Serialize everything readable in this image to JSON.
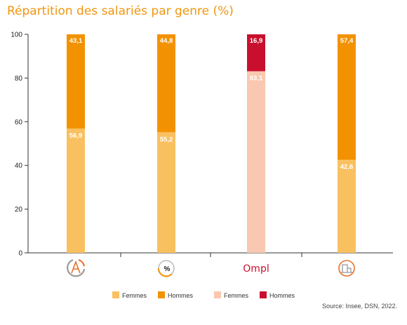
{
  "header": {
    "title": "Répartition des salariés par genre (%)"
  },
  "footer": {
    "source": "Source: Insee, DSN, 2022."
  },
  "colors": {
    "femmes": "#f9c060",
    "hommes": "#f39200",
    "femmes_ompl": "#f9c8b0",
    "hommes_ompl": "#c8102e",
    "axis": "#333333",
    "title": "#f0960f"
  },
  "chart_data": {
    "type": "bar",
    "stacked": true,
    "categories": [
      "architecture-icon",
      "percent-icon",
      "Ompl",
      "building-icon"
    ],
    "category_logo_text": [
      "",
      "",
      "Ompl",
      ""
    ],
    "series": [
      {
        "name": "Femmes",
        "values": [
          56.9,
          55.2,
          83.1,
          42.6
        ],
        "labels": [
          "56,9",
          "55,2",
          "83,1",
          "42,6"
        ]
      },
      {
        "name": "Hommes",
        "values": [
          43.1,
          44.8,
          16.9,
          57.4
        ],
        "labels": [
          "43,1",
          "44,8",
          "16,9",
          "57,4"
        ]
      }
    ],
    "yticks": [
      "0",
      "20",
      "40",
      "60",
      "80",
      "100"
    ],
    "ylim": [
      0,
      100
    ],
    "grid": false,
    "legend": [
      {
        "label": "Femmes",
        "color": "#f9c060"
      },
      {
        "label": "Hommes",
        "color": "#f39200"
      },
      {
        "label": "Femmes",
        "color": "#f9c8b0"
      },
      {
        "label": "Hommes",
        "color": "#c8102e"
      }
    ],
    "legend_position": "bottom"
  }
}
